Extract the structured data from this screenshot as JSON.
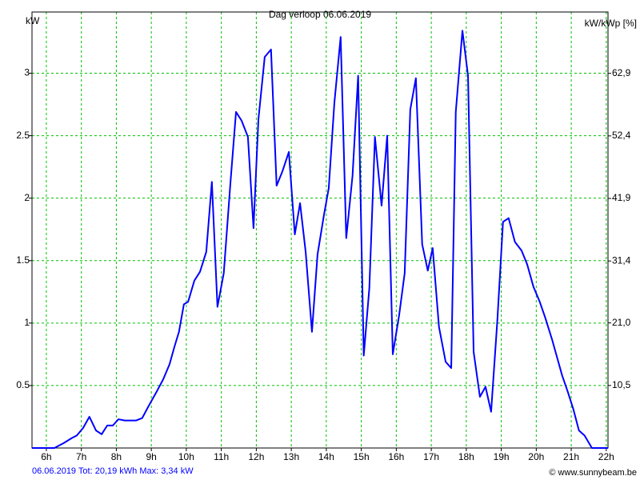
{
  "chart_data": {
    "type": "line",
    "title": "Dag  verloop 06.06.2019",
    "y_label": "kW",
    "y2_label": "kW/kWp [%]",
    "footer": "06.06.2019 Tot: 20,19 kWh Max: 3,34 kW",
    "credit": "© www.sunnybeam.be",
    "color": "#0000ff",
    "grid": true,
    "x": [
      5.59,
      6.23,
      6.5,
      6.73,
      6.87,
      7.05,
      7.23,
      7.42,
      7.58,
      7.74,
      7.9,
      8.06,
      8.24,
      8.56,
      8.74,
      8.93,
      9.15,
      9.34,
      9.52,
      9.66,
      9.79,
      9.93,
      10.05,
      10.23,
      10.39,
      10.57,
      10.73,
      10.89,
      11.07,
      11.26,
      11.42,
      11.58,
      11.76,
      11.92,
      12.06,
      12.24,
      12.42,
      12.58,
      12.74,
      12.93,
      13.1,
      13.25,
      13.41,
      13.59,
      13.75,
      13.93,
      14.07,
      14.23,
      14.41,
      14.57,
      14.75,
      14.91,
      15.07,
      15.23,
      15.39,
      15.58,
      15.74,
      15.9,
      16.08,
      16.24,
      16.4,
      16.56,
      16.74,
      16.9,
      17.04,
      17.22,
      17.41,
      17.57,
      17.7,
      17.89,
      18.05,
      18.21,
      18.39,
      18.55,
      18.71,
      18.89,
      19.05,
      19.21,
      19.39,
      19.58,
      19.74,
      19.92,
      20.1,
      20.26,
      20.45,
      20.61,
      20.74,
      20.9,
      21.06,
      21.22,
      21.38,
      21.59,
      22.05
    ],
    "values": [
      0,
      0,
      0.04,
      0.08,
      0.1,
      0.16,
      0.25,
      0.14,
      0.11,
      0.18,
      0.18,
      0.23,
      0.22,
      0.22,
      0.24,
      0.34,
      0.45,
      0.55,
      0.67,
      0.81,
      0.93,
      1.15,
      1.17,
      1.34,
      1.41,
      1.57,
      2.13,
      1.13,
      1.4,
      2.12,
      2.69,
      2.62,
      2.49,
      1.76,
      2.63,
      3.13,
      3.19,
      2.1,
      2.21,
      2.37,
      1.71,
      1.96,
      1.57,
      0.93,
      1.55,
      1.86,
      2.08,
      2.76,
      3.29,
      1.68,
      2.18,
      2.98,
      0.74,
      1.28,
      2.49,
      1.94,
      2.5,
      0.75,
      1.06,
      1.4,
      2.71,
      2.96,
      1.63,
      1.42,
      1.6,
      0.97,
      0.69,
      0.64,
      2.69,
      3.34,
      2.98,
      0.77,
      0.41,
      0.49,
      0.29,
      1.03,
      1.81,
      1.84,
      1.65,
      1.58,
      1.47,
      1.29,
      1.17,
      1.04,
      0.87,
      0.71,
      0.58,
      0.45,
      0.31,
      0.14,
      0.1,
      0,
      0
    ],
    "xlim": [
      5.59,
      22.05
    ],
    "xticks": [
      {
        "value": 6,
        "label": "6h"
      },
      {
        "value": 7,
        "label": "7h"
      },
      {
        "value": 8,
        "label": "8h"
      },
      {
        "value": 9,
        "label": "9h"
      },
      {
        "value": 10,
        "label": "10h"
      },
      {
        "value": 11,
        "label": "11h"
      },
      {
        "value": 12,
        "label": "12h"
      },
      {
        "value": 13,
        "label": "13h"
      },
      {
        "value": 14,
        "label": "14h"
      },
      {
        "value": 15,
        "label": "15h"
      },
      {
        "value": 16,
        "label": "16h"
      },
      {
        "value": 17,
        "label": "17h"
      },
      {
        "value": 18,
        "label": "18h"
      },
      {
        "value": 19,
        "label": "19h"
      },
      {
        "value": 20,
        "label": "20h"
      },
      {
        "value": 21,
        "label": "21h"
      },
      {
        "value": 22,
        "label": "22h"
      }
    ],
    "ylim": [
      0,
      3.49
    ],
    "yticks": [
      0.5,
      1,
      1.5,
      2,
      2.5,
      3
    ],
    "y2lim": [
      0,
      73.2
    ],
    "y2ticks": [
      {
        "value": 10.5,
        "label": "10,5"
      },
      {
        "value": 21.0,
        "label": "21,0"
      },
      {
        "value": 31.4,
        "label": "31,4"
      },
      {
        "value": 41.9,
        "label": "41,9"
      },
      {
        "value": 52.4,
        "label": "52,4"
      },
      {
        "value": 62.9,
        "label": "62,9"
      }
    ]
  }
}
